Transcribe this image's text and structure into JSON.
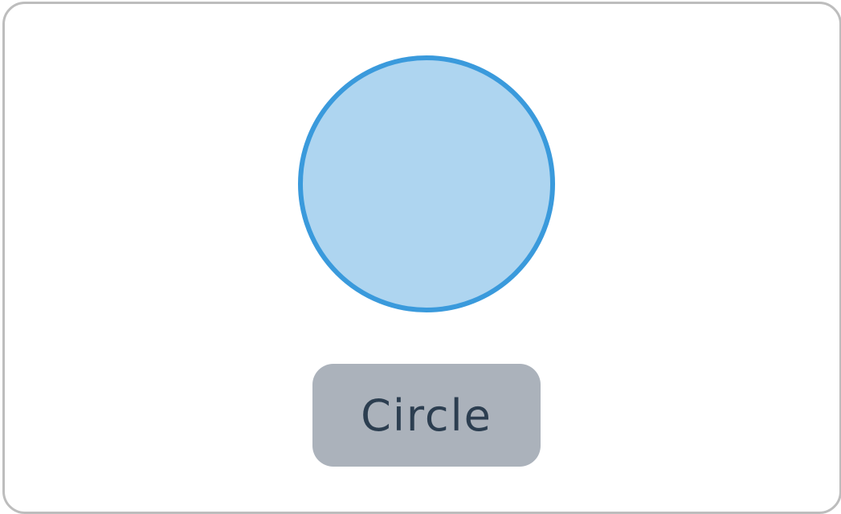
{
  "shape": {
    "name": "circle",
    "fill_color": "#aed5f0",
    "stroke_color": "#3a9adc"
  },
  "label": {
    "text": "Circle",
    "background_color": "#abb2bb",
    "text_color": "#2c3e50"
  },
  "card": {
    "border_color": "#bdbdbd",
    "background_color": "#ffffff"
  }
}
